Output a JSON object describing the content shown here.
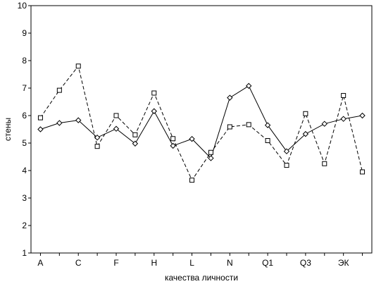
{
  "chart_data": {
    "type": "line",
    "title": "",
    "xlabel": "качества личности",
    "ylabel": "стены",
    "categories": [
      "A",
      "",
      "C",
      "",
      "F",
      "",
      "H",
      "",
      "L",
      "",
      "N",
      "",
      "Q1",
      "",
      "Q3",
      "",
      "ЭК",
      ""
    ],
    "ylim": [
      1,
      10
    ],
    "yticks": [
      1,
      2,
      3,
      4,
      5,
      6,
      7,
      8,
      9,
      10
    ],
    "grid": true,
    "legend": "none",
    "series": [
      {
        "style": "solid",
        "marker": "diamond",
        "color": "#000000",
        "values": [
          5.5,
          5.73,
          5.83,
          5.2,
          5.52,
          4.98,
          6.16,
          4.9,
          5.15,
          4.45,
          6.65,
          7.08,
          5.65,
          4.7,
          5.33,
          5.7,
          5.88,
          6.0
        ]
      },
      {
        "style": "dashed",
        "marker": "square",
        "color": "#000000",
        "values": [
          5.92,
          6.92,
          7.8,
          4.88,
          6.0,
          5.3,
          6.82,
          5.16,
          3.65,
          4.66,
          5.59,
          5.67,
          5.09,
          4.19,
          6.07,
          4.25,
          6.73,
          3.95
        ]
      }
    ]
  }
}
